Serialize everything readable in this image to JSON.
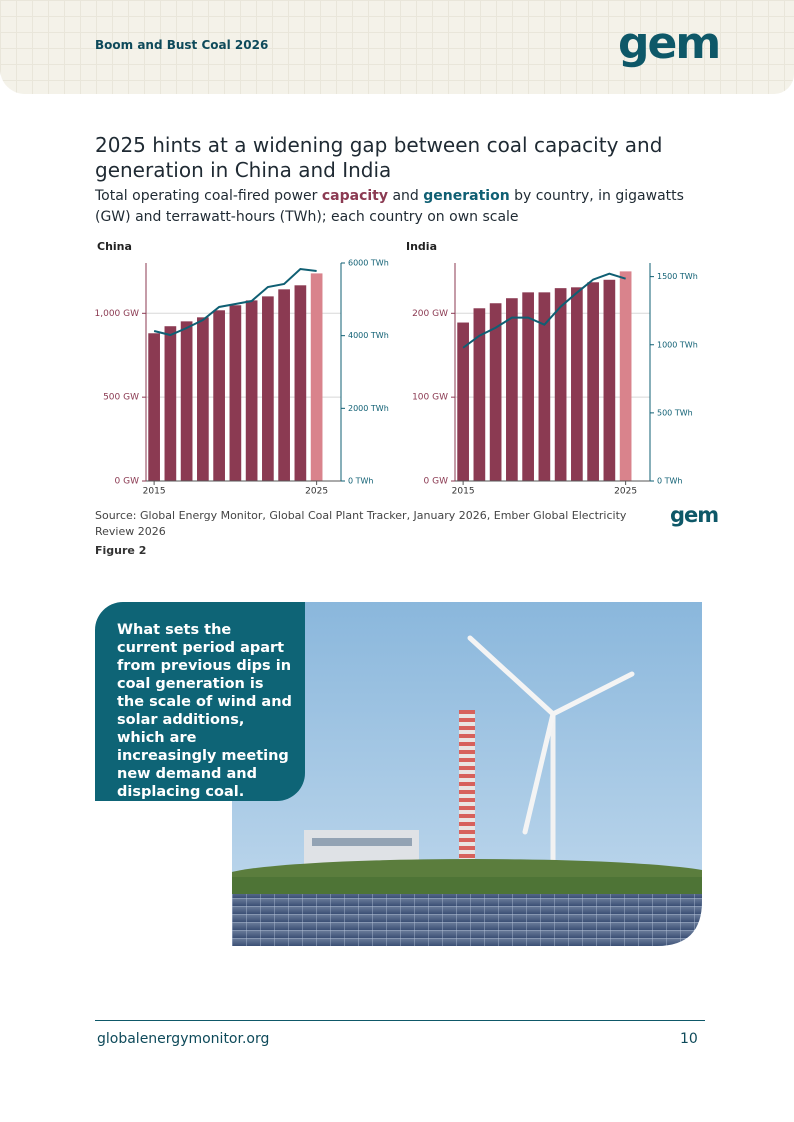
{
  "header": {
    "title": "Boom and Bust Coal 2026",
    "logo": "gem"
  },
  "heading": "2025 hints at a widening gap between coal capacity and generation in China and India",
  "subtitle": [
    "Total operating coal-fired power ",
    "capacity",
    " and ",
    "generation",
    " by country, in gigawatts (GW) and terrawatt-hours (TWh); each country on own scale"
  ],
  "chart_data": [
    {
      "type": "bar",
      "title": "China",
      "x": [
        2015,
        2016,
        2017,
        2018,
        2019,
        2020,
        2021,
        2022,
        2023,
        2024,
        2025
      ],
      "xlim": [
        2014.5,
        2026.5
      ],
      "xticks": [
        2015,
        2025
      ],
      "ylim": [
        0,
        1300
      ],
      "yticks": [
        {
          "value": 0,
          "label": "0 GW"
        },
        {
          "value": 500,
          "label": "500 GW"
        },
        {
          "value": 1000,
          "label": "1,000 GW"
        }
      ],
      "y2lim": [
        0,
        6000
      ],
      "y2ticks": [
        {
          "value": 0,
          "label": "0 TWh"
        },
        {
          "value": 2000,
          "label": "2000 TWh"
        },
        {
          "value": 4000,
          "label": "4000 TWh"
        },
        {
          "value": 6000,
          "label": "6000 TWh"
        }
      ],
      "grid": true,
      "highlight_color": "#d9838c",
      "series": [
        {
          "name": "capacity",
          "color": "#8b3a52",
          "values": [
            881,
            923,
            952,
            976,
            1018,
            1048,
            1077,
            1101,
            1143,
            1167,
            1238
          ]
        },
        {
          "name": "generation",
          "type": "line",
          "axis": "y2",
          "color": "#0f5f73",
          "values": [
            4128,
            4018,
            4211,
            4431,
            4789,
            4872,
            4954,
            5339,
            5422,
            5835,
            5780
          ]
        }
      ]
    },
    {
      "type": "bar",
      "title": "India",
      "x": [
        2015,
        2016,
        2017,
        2018,
        2019,
        2020,
        2021,
        2022,
        2023,
        2024,
        2025
      ],
      "xlim": [
        2014.5,
        2026.5
      ],
      "xticks": [
        2015,
        2025
      ],
      "ylim": [
        0,
        260
      ],
      "yticks": [
        {
          "value": 0,
          "label": "0 GW"
        },
        {
          "value": 100,
          "label": "100 GW"
        },
        {
          "value": 200,
          "label": "200 GW"
        }
      ],
      "y2lim": [
        0,
        1600
      ],
      "y2ticks": [
        {
          "value": 0,
          "label": "0 TWh"
        },
        {
          "value": 500,
          "label": "500 TWh"
        },
        {
          "value": 1000,
          "label": "1000 TWh"
        },
        {
          "value": 1500,
          "label": "1500 TWh"
        }
      ],
      "grid": true,
      "highlight_color": "#d9838c",
      "series": [
        {
          "name": "capacity",
          "color": "#8b3a52",
          "values": [
            189,
            206,
            212,
            218,
            225,
            225,
            230,
            231,
            237,
            240,
            250
          ]
        },
        {
          "name": "generation",
          "type": "line",
          "axis": "y2",
          "color": "#0f5f73",
          "values": [
            978,
            1066,
            1125,
            1199,
            1199,
            1147,
            1279,
            1382,
            1478,
            1522,
            1485
          ]
        }
      ]
    }
  ],
  "source": "Source: Global Energy Monitor, Global Coal Plant Tracker, January 2026, Ember Global Electricity Review 2026",
  "source_logo": "gem",
  "figure_label": "Figure 2",
  "callout": "What sets the current period apart from previous dips in coal generation is the scale of wind and solar additions, which are increasingly meeting new demand and displacing coal.",
  "footer": {
    "url": "globalenergymonitor.org",
    "page": "10"
  }
}
